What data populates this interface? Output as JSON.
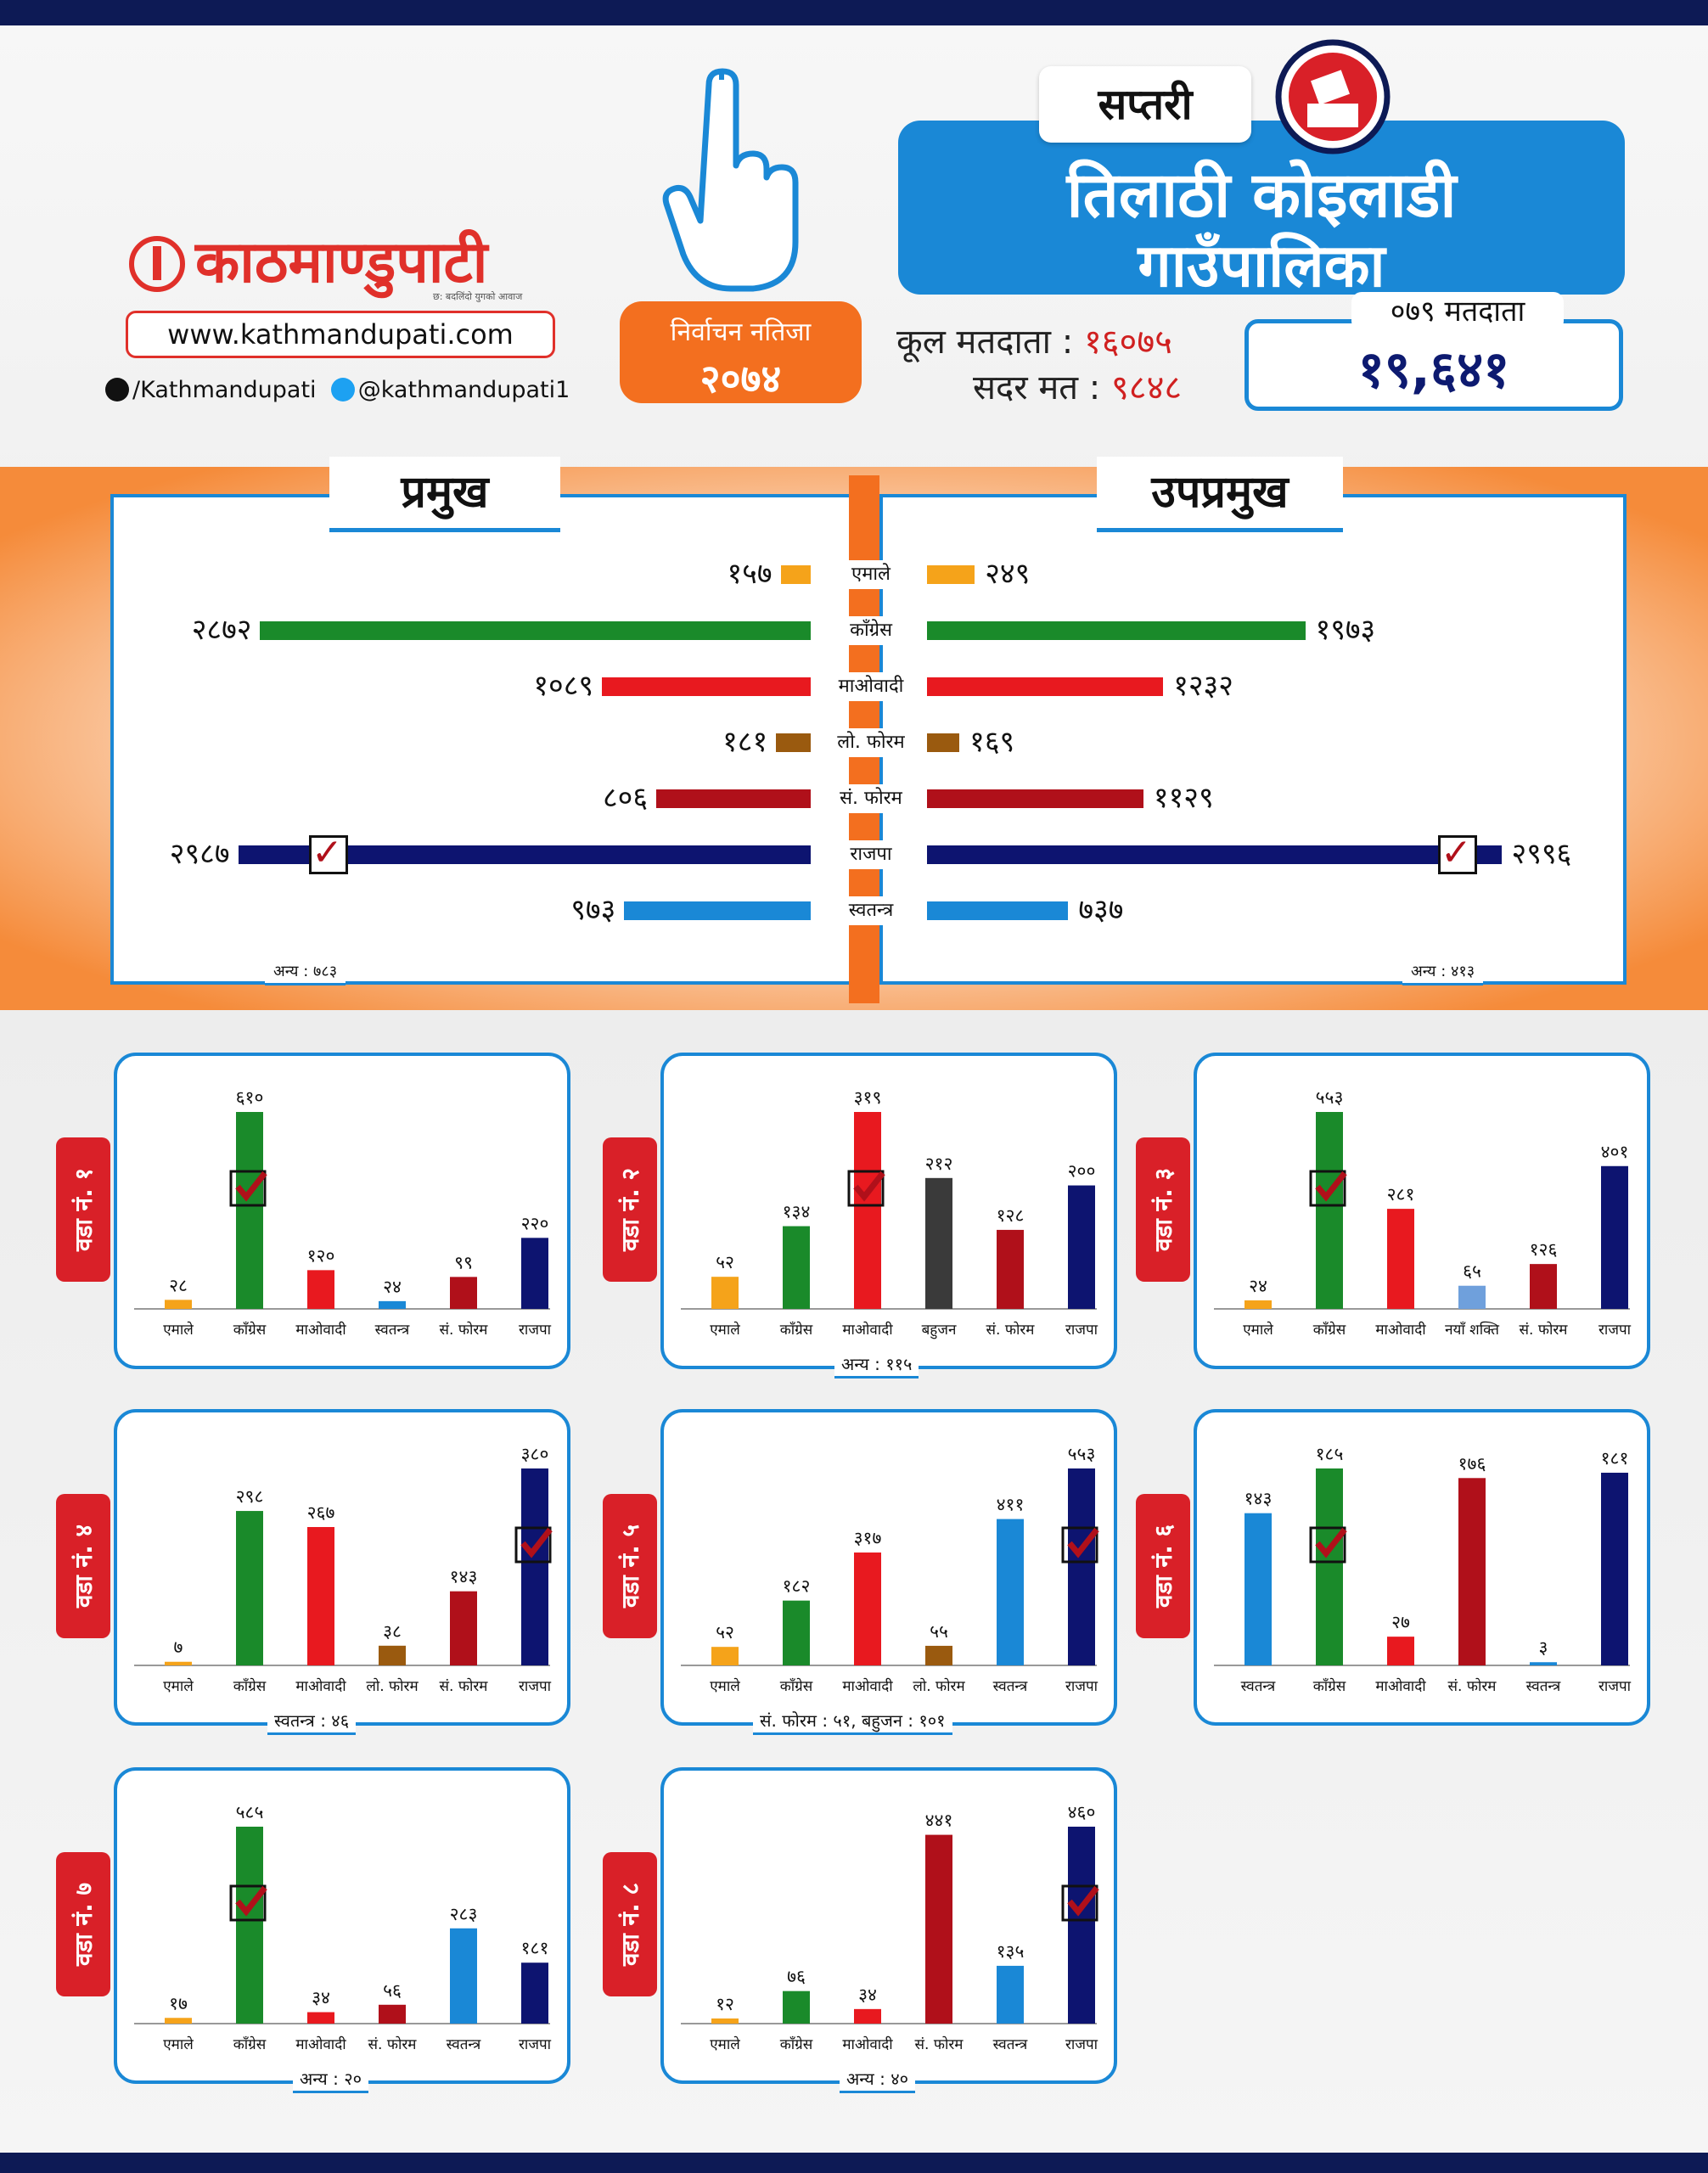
{
  "header": {
    "brand": "काठमाण्डुपाटी",
    "brand_tagline": "छ: बदलिंदो युगको आवाज",
    "url": "www.kathmandupati.com",
    "facebook": "/Kathmandupati",
    "twitter": "@kathmandupati1",
    "result_label": "निर्वाचन नतिजा",
    "result_year": "२०७४",
    "district": "सप्तरी",
    "title_line1": "तिलाठी कोइलाडी",
    "title_line2": "गाउँपालिका",
    "total_voters_label": "कूल मतदाता :",
    "total_voters": "१६०७५",
    "valid_votes_label": "सदर मत :",
    "valid_votes": "९८४८",
    "voters_079_label": "०७९ मतदाता",
    "voters_079": "१९,६४१"
  },
  "colors": {
    "emale": "#f5a31a",
    "congress": "#1a8a2a",
    "maoist": "#e8191f",
    "loforum": "#9a5a0f",
    "saforum": "#b0101a",
    "rajpa": "#0d1470",
    "independent": "#1a88d6",
    "bahujan": "#3a3a3a",
    "nayashakti": "#6fa0dc",
    "accent": "#f36f1f",
    "brand_red": "#e0302a"
  },
  "chart_data": [
    {
      "type": "bar",
      "title": "प्रमुख",
      "categories": [
        "एमाले",
        "काँग्रेस",
        "माओवादी",
        "लो. फोरम",
        "सं. फोरम",
        "राजपा",
        "स्वतन्त्र"
      ],
      "values": [
        157,
        2872,
        1089,
        181,
        806,
        2987,
        973
      ],
      "value_labels": [
        "१५७",
        "२८७२",
        "१०८९",
        "१८१",
        "८०६",
        "२९८७",
        "९७३"
      ],
      "winner": "राजपा",
      "other": "अन्य : ७८३"
    },
    {
      "type": "bar",
      "title": "उपप्रमुख",
      "categories": [
        "एमाले",
        "काँग्रेस",
        "माओवादी",
        "लो. फोरम",
        "सं. फोरम",
        "राजपा",
        "स्वतन्त्र"
      ],
      "values": [
        249,
        1973,
        1232,
        169,
        1129,
        2996,
        737
      ],
      "value_labels": [
        "२४९",
        "१९७३",
        "१२३२",
        "१६९",
        "११२९",
        "२९९६",
        "७३७"
      ],
      "winner": "राजपा",
      "other": "अन्य : ४१३"
    },
    {
      "type": "bar",
      "title": "वडा नं. १",
      "categories": [
        "एमाले",
        "काँग्रेस",
        "माओवादी",
        "स्वतन्त्र",
        "सं. फोरम",
        "राजपा"
      ],
      "values": [
        28,
        610,
        120,
        24,
        99,
        220
      ],
      "value_labels": [
        "२८",
        "६१०",
        "१२०",
        "२४",
        "९९",
        "२२०"
      ],
      "colors": [
        "emale",
        "congress",
        "maoist",
        "independent",
        "saforum",
        "rajpa"
      ],
      "winner_index": 1,
      "other": ""
    },
    {
      "type": "bar",
      "title": "वडा नं. २",
      "categories": [
        "एमाले",
        "काँग्रेस",
        "माओवादी",
        "बहुजन",
        "सं. फोरम",
        "राजपा"
      ],
      "values": [
        52,
        134,
        319,
        212,
        128,
        200
      ],
      "value_labels": [
        "५२",
        "१३४",
        "३१९",
        "२१२",
        "१२८",
        "२००"
      ],
      "colors": [
        "emale",
        "congress",
        "maoist",
        "bahujan",
        "saforum",
        "rajpa"
      ],
      "winner_index": 2,
      "other": "अन्य : ११५"
    },
    {
      "type": "bar",
      "title": "वडा नं. ३",
      "categories": [
        "एमाले",
        "काँग्रेस",
        "माओवादी",
        "नयाँ शक्ति",
        "सं. फोरम",
        "राजपा"
      ],
      "values": [
        24,
        553,
        281,
        65,
        126,
        401
      ],
      "value_labels": [
        "२४",
        "५५३",
        "२८१",
        "६५",
        "१२६",
        "४०१"
      ],
      "colors": [
        "emale",
        "congress",
        "maoist",
        "nayashakti",
        "saforum",
        "rajpa"
      ],
      "winner_index": 1,
      "other": ""
    },
    {
      "type": "bar",
      "title": "वडा नं. ४",
      "categories": [
        "एमाले",
        "काँग्रेस",
        "माओवादी",
        "लो. फोरम",
        "सं. फोरम",
        "राजपा"
      ],
      "values": [
        7,
        298,
        267,
        38,
        143,
        380
      ],
      "value_labels": [
        "७",
        "२९८",
        "२६७",
        "३८",
        "१४३",
        "३८०"
      ],
      "colors": [
        "emale",
        "congress",
        "maoist",
        "loforum",
        "saforum",
        "rajpa"
      ],
      "winner_index": 5,
      "other": "स्वतन्त्र : ४६"
    },
    {
      "type": "bar",
      "title": "वडा नं. ५",
      "categories": [
        "एमाले",
        "काँग्रेस",
        "माओवादी",
        "लो. फोरम",
        "स्वतन्त्र",
        "राजपा"
      ],
      "values": [
        52,
        182,
        317,
        55,
        411,
        553
      ],
      "value_labels": [
        "५२",
        "१८२",
        "३१७",
        "५५",
        "४११",
        "५५३"
      ],
      "colors": [
        "emale",
        "congress",
        "maoist",
        "loforum",
        "independent",
        "rajpa"
      ],
      "winner_index": 5,
      "other": "सं. फोरम : ५१, बहुजन : १०१"
    },
    {
      "type": "bar",
      "title": "वडा नं. ६",
      "categories": [
        "स्वतन्त्र",
        "काँग्रेस",
        "माओवादी",
        "सं. फोरम",
        "स्वतन्त्र",
        "राजपा"
      ],
      "values": [
        143,
        185,
        27,
        176,
        3,
        181
      ],
      "value_labels": [
        "१४३",
        "१८५",
        "२७",
        "१७६",
        "३",
        "१८१"
      ],
      "colors": [
        "independent",
        "congress",
        "maoist",
        "saforum",
        "independent",
        "rajpa"
      ],
      "winner_index": 1,
      "other": ""
    },
    {
      "type": "bar",
      "title": "वडा नं. ७",
      "categories": [
        "एमाले",
        "काँग्रेस",
        "माओवादी",
        "सं. फोरम",
        "स्वतन्त्र",
        "राजपा"
      ],
      "values": [
        17,
        585,
        34,
        56,
        283,
        181
      ],
      "value_labels": [
        "१७",
        "५८५",
        "३४",
        "५६",
        "२८३",
        "१८१"
      ],
      "colors": [
        "emale",
        "congress",
        "maoist",
        "saforum",
        "independent",
        "rajpa"
      ],
      "winner_index": 1,
      "other": "अन्य : २०"
    },
    {
      "type": "bar",
      "title": "वडा नं. ८",
      "categories": [
        "एमाले",
        "काँग्रेस",
        "माओवादी",
        "सं. फोरम",
        "स्वतन्त्र",
        "राजपा"
      ],
      "values": [
        12,
        76,
        34,
        441,
        135,
        460
      ],
      "value_labels": [
        "१२",
        "७६",
        "३४",
        "४४१",
        "१३५",
        "४६०"
      ],
      "colors": [
        "emale",
        "congress",
        "maoist",
        "saforum",
        "independent",
        "rajpa"
      ],
      "winner_index": 5,
      "other": "अन्य : ४०"
    }
  ]
}
